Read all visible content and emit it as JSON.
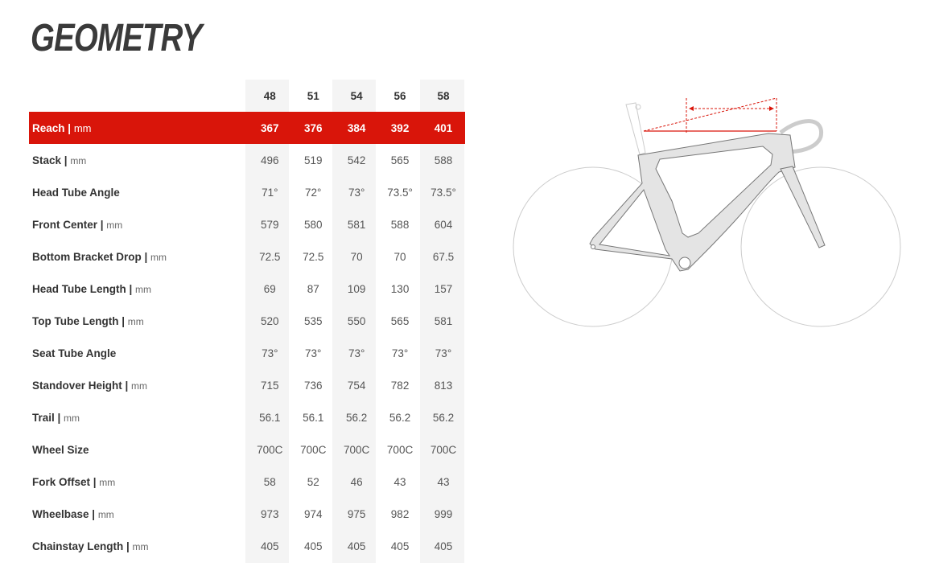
{
  "title": "GEOMETRY",
  "sizes": [
    "48",
    "51",
    "54",
    "56",
    "58"
  ],
  "rows": [
    {
      "label": "Reach",
      "unit": "mm",
      "values": [
        "367",
        "376",
        "384",
        "392",
        "401"
      ],
      "highlighted": true
    },
    {
      "label": "Stack",
      "unit": "mm",
      "values": [
        "496",
        "519",
        "542",
        "565",
        "588"
      ]
    },
    {
      "label": "Head Tube Angle",
      "unit": "",
      "values": [
        "71°",
        "72°",
        "73°",
        "73.5°",
        "73.5°"
      ]
    },
    {
      "label": "Front Center",
      "unit": "mm",
      "values": [
        "579",
        "580",
        "581",
        "588",
        "604"
      ]
    },
    {
      "label": "Bottom Bracket Drop",
      "unit": "mm",
      "values": [
        "72.5",
        "72.5",
        "70",
        "70",
        "67.5"
      ]
    },
    {
      "label": "Head Tube Length",
      "unit": "mm",
      "values": [
        "69",
        "87",
        "109",
        "130",
        "157"
      ]
    },
    {
      "label": "Top Tube Length",
      "unit": "mm",
      "values": [
        "520",
        "535",
        "550",
        "565",
        "581"
      ]
    },
    {
      "label": "Seat Tube Angle",
      "unit": "",
      "values": [
        "73°",
        "73°",
        "73°",
        "73°",
        "73°"
      ]
    },
    {
      "label": "Standover Height",
      "unit": "mm",
      "values": [
        "715",
        "736",
        "754",
        "782",
        "813"
      ]
    },
    {
      "label": "Trail",
      "unit": "mm",
      "values": [
        "56.1",
        "56.1",
        "56.2",
        "56.2",
        "56.2"
      ]
    },
    {
      "label": "Wheel Size",
      "unit": "",
      "values": [
        "700C",
        "700C",
        "700C",
        "700C",
        "700C"
      ]
    },
    {
      "label": "Fork Offset",
      "unit": "mm",
      "values": [
        "58",
        "52",
        "46",
        "43",
        "43"
      ]
    },
    {
      "label": "Wheelbase",
      "unit": "mm",
      "values": [
        "973",
        "974",
        "975",
        "982",
        "999"
      ]
    },
    {
      "label": "Chainstay Length",
      "unit": "mm",
      "values": [
        "405",
        "405",
        "405",
        "405",
        "405"
      ]
    }
  ],
  "colors": {
    "highlight": "#d9150a",
    "column_shade": "#f4f4f4"
  },
  "diagram": {
    "icon": "bike-geometry-reach-diagram"
  }
}
